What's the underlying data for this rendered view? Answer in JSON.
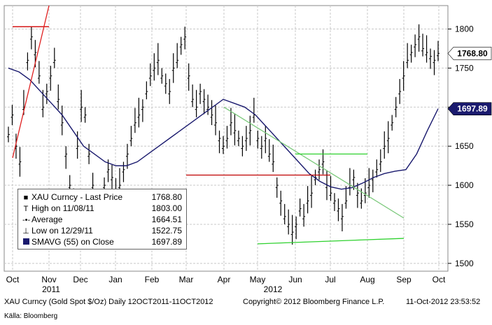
{
  "chart_data": {
    "type": "candlestick",
    "ticker_title": "XAU Curncy (Gold Spot $/Oz) Daily 12OCT2011-11OCT2012",
    "copyright": "Copyright© 2012 Bloomberg Finance L.P.",
    "timestamp": "11-Oct-2012 23:53:52",
    "source": "Källa: Bloomberg",
    "x_labels": [
      "Oct",
      "Nov",
      "Dec",
      "Jan",
      "Feb",
      "Mar",
      "Apr",
      "May",
      "Jun",
      "Jul",
      "Aug",
      "Sep",
      "Oct"
    ],
    "year_labels": [
      "2011",
      "2012"
    ],
    "y_ticks": [
      1500,
      1550,
      1600,
      1650,
      1700,
      1750,
      1800
    ],
    "ylim": [
      1490,
      1830
    ],
    "grid": true,
    "last_price_badge": "1768.80",
    "sma_badge": "1697.89",
    "legend": {
      "title": "XAU Curncy  - Last Price",
      "title_value": "1768.80",
      "rows": [
        {
          "icon": "T",
          "label": "High on 11/08/11",
          "value": "1803.00"
        },
        {
          "icon": "-•-",
          "label": "Average",
          "value": "1664.51"
        },
        {
          "icon": "⊥",
          "label": "Low on 12/29/11",
          "value": "1522.75"
        },
        {
          "icon": "sma",
          "label": "SMAVG (55) on Close",
          "value": "1697.89"
        }
      ]
    },
    "prices": [
      1665,
      1690,
      1650,
      1630,
      1700,
      1760,
      1790,
      1770,
      1740,
      1700,
      1720,
      1740,
      1760,
      1710,
      1680,
      1640,
      1600,
      1580,
      1650,
      1700,
      1690,
      1640,
      1600,
      1560,
      1530,
      1600,
      1620,
      1610,
      1590,
      1600,
      1620,
      1640,
      1660,
      1680,
      1690,
      1700,
      1720,
      1740,
      1750,
      1760,
      1740,
      1730,
      1720,
      1750,
      1760,
      1780,
      1790,
      1740,
      1710,
      1700,
      1720,
      1710,
      1700,
      1690,
      1680,
      1660,
      1650,
      1660,
      1680,
      1670,
      1660,
      1650,
      1660,
      1670,
      1690,
      1660,
      1650,
      1660,
      1640,
      1630,
      1600,
      1580,
      1560,
      1550,
      1540,
      1550,
      1570,
      1560,
      1580,
      1590,
      1610,
      1620,
      1630,
      1600,
      1590,
      1580,
      1570,
      1560,
      1580,
      1600,
      1610,
      1590,
      1580,
      1590,
      1600,
      1610,
      1620,
      1630,
      1650,
      1660,
      1680,
      1700,
      1720,
      1740,
      1760,
      1770,
      1780,
      1790,
      1775,
      1770,
      1765,
      1760,
      1768.8
    ],
    "resistance_line": {
      "from": [
        "Nov",
        1803
      ],
      "to": [
        "Oct",
        1803
      ]
    },
    "downtrend_line": {
      "from": [
        "Nov",
        1830
      ],
      "to": [
        "Oct",
        1635
      ]
    },
    "support_line": {
      "from": [
        "Jun",
        1640
      ],
      "to": [
        "Aug",
        1640
      ]
    },
    "lower_line": {
      "from": [
        "May",
        1525
      ],
      "to": [
        "Sep",
        1532
      ]
    },
    "mid_line": {
      "from": [
        "Mar",
        1613
      ],
      "to": [
        "Jul",
        1613
      ]
    },
    "channel_line": {
      "from": [
        "Apr",
        1700
      ],
      "to": [
        "Sep",
        1558
      ]
    },
    "sma55": [
      1750,
      1745,
      1735,
      1720,
      1705,
      1690,
      1670,
      1650,
      1640,
      1630,
      1625,
      1625,
      1630,
      1640,
      1650,
      1660,
      1670,
      1680,
      1690,
      1700,
      1710,
      1705,
      1700,
      1690,
      1675,
      1660,
      1645,
      1630,
      1615,
      1605,
      1598,
      1595,
      1597,
      1603,
      1610,
      1615,
      1618,
      1620,
      1640,
      1670,
      1698
    ]
  }
}
